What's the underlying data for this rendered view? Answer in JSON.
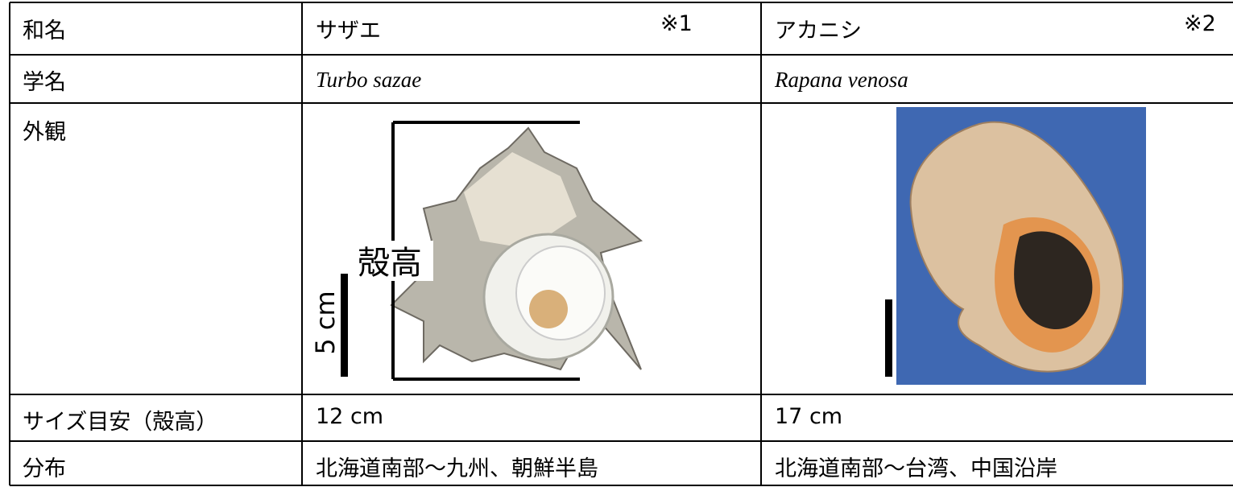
{
  "table": {
    "rows": [
      {
        "label": "和名",
        "sazae": "サザエ",
        "sazae_note": "※1",
        "akanishi": "アカニシ",
        "akanishi_note": "※2"
      },
      {
        "label": "学名",
        "sazae": "Turbo sazae",
        "akanishi": "Rapana venosa"
      },
      {
        "label": "外観",
        "sazae_height_label": "殻高",
        "sazae_scale_label": "5 cm"
      },
      {
        "label": "サイズ目安（殻高）",
        "sazae": "12 cm",
        "akanishi": "17 cm"
      },
      {
        "label": "分布",
        "sazae": "北海道南部～九州、朝鮮半島",
        "akanishi": "北海道南部～台湾、中国沿岸"
      }
    ]
  }
}
